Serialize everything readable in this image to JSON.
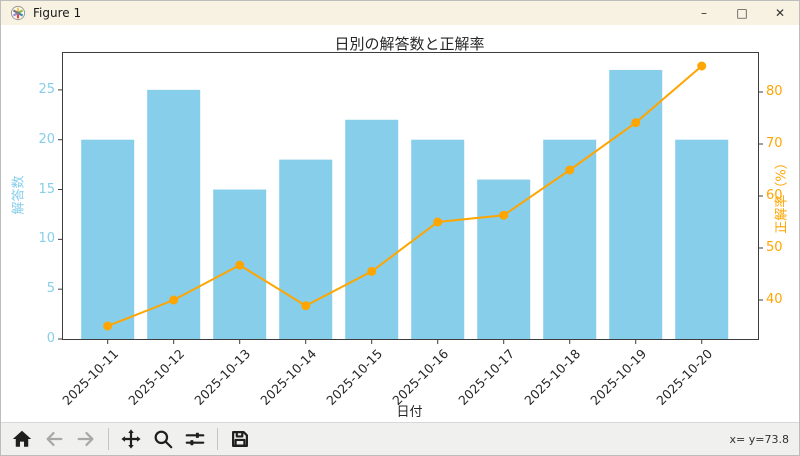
{
  "window": {
    "title": "Figure 1",
    "controls": {
      "minimize": "–",
      "maximize": "□",
      "close": "✕"
    }
  },
  "chart_data": {
    "type": "bar+line",
    "title": "日別の解答数と正解率",
    "xlabel": "日付",
    "categories": [
      "2025-10-11",
      "2025-10-12",
      "2025-10-13",
      "2025-10-14",
      "2025-10-15",
      "2025-10-16",
      "2025-10-17",
      "2025-10-18",
      "2025-10-19",
      "2025-10-20"
    ],
    "series": [
      {
        "name": "解答数",
        "type": "bar",
        "axis": "left",
        "color": "#87CEEB",
        "values": [
          20,
          25,
          15,
          18,
          22,
          20,
          16,
          20,
          27,
          20
        ]
      },
      {
        "name": "正解率",
        "type": "line",
        "axis": "right",
        "color": "#FFA500",
        "marker": "circle",
        "values": [
          35.0,
          40.0,
          46.7,
          38.9,
          45.5,
          55.0,
          56.3,
          65.0,
          74.1,
          85.0
        ]
      }
    ],
    "left_axis": {
      "label": "解答数",
      "color": "#87CEEB",
      "ticks": [
        0,
        5,
        10,
        15,
        20,
        25
      ],
      "range": [
        0,
        28.7
      ]
    },
    "right_axis": {
      "label": "正解率（%）",
      "color": "#FFA500",
      "ticks": [
        40,
        50,
        60,
        70,
        80
      ],
      "range": [
        32.5,
        87.5
      ]
    },
    "grid": false,
    "legend": "none",
    "spine_color": "#3c3c3c"
  },
  "toolbar": {
    "status": "x= y=73.8",
    "buttons": [
      {
        "icon": "home",
        "enabled": true
      },
      {
        "icon": "back",
        "enabled": false
      },
      {
        "icon": "forward",
        "enabled": false
      },
      {
        "icon": "pan",
        "enabled": true
      },
      {
        "icon": "zoom-to-rect",
        "enabled": true
      },
      {
        "icon": "configure-subplots",
        "enabled": true
      },
      {
        "icon": "save",
        "enabled": true
      }
    ]
  }
}
